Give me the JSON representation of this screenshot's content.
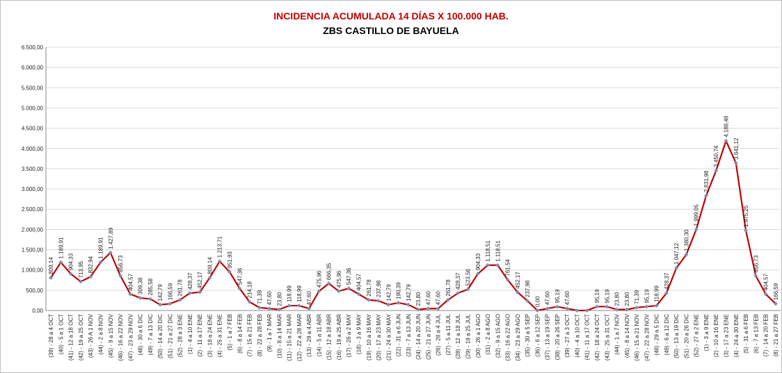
{
  "chart_data": {
    "type": "line",
    "title": "INCIDENCIA ACUMULADA 14 DÍAS X 100.000 HAB.",
    "subtitle": "ZBS CASTILLO DE BAYUELA",
    "categories": [
      "(39) - 28 a 4 OCT",
      "(40) - 5 a 1 OCT",
      "(41) - 12 a 18 OCT",
      "(42) - 19 a 25 OCT",
      "(43) - 26 A 1 NOV",
      "(44) - 2 a 8 NOV",
      "(45) - 9 a 15 NOV",
      "(46) - 16 a 22 NOV",
      "(47) - 23 a 29 NOV",
      "(48) - 30 a 6 DIC",
      "(49) - 7 a 13 DIC",
      "(50) - 14 a 20 DIC",
      "(51) - 21 a 27 DIC",
      "(52) - 28 a 3 ENE",
      "(1) - 4 a 10 ENE",
      "(2) - 11 a 17 ENE",
      "(3) - 18 a 24 ENE",
      "(4) - 25 a 31 ENE",
      "(5) - 1 a 7 FEB",
      "(6) - 8 a 14 FEB",
      "(7) - 15 a 21 FEB",
      "(8) - 22 a 28 FEB",
      "(9) - 1 a 7 MAR",
      "(10) - 8 a 14 MAR",
      "(11) - 15 a 21 MAR",
      "(12) - 22 a 28 MAR",
      "(13) - 29 a 4 ABR",
      "(14) - 5 a 11 ABR",
      "(15) - 12 a 18 ABR",
      "(16) - 19 a 25 ABR",
      "(17) - 26 a 2 MAY",
      "(18) - 3 a 9 MAY",
      "(19) - 10 a 16 MAY",
      "(20) - 17 a 23 MAY",
      "(21) - 24 a 30 MAY",
      "(22) - 31 a 6 JUN",
      "(23) - 7 a 13 JUN",
      "(24) - 14 a 20 JUN",
      "(25) - 21 a 27 JUN",
      "(26) - 28 a 4 JUL",
      "(27) - 5 a 11 JUL",
      "(28) - 12 a 18 JUL",
      "(29) - 19 a 25 JUL",
      "(30) - 26 a 1 AGO",
      "(31) - 2 a 8 AGO",
      "(32) - 9 a 15 AGO",
      "(33) - 16 a 22 AGO",
      "(34) - 23 a 29 AGO",
      "(35) - 30 a 5 SEP",
      "(36) - 6 a 12 SEP",
      "(37) - 13 a 19 SEP",
      "(38) - 20 a 26 SEP",
      "(39) - 27 a 3 OCT",
      "(40) - 4 a 10 OCT",
      "(41) - 11 a 17 OCT",
      "(42) - 18 a 24 OCT",
      "(43) - 25 a 31 OCT",
      "(44) - 1 a 7 NOV",
      "(45) - 8 a 14 NOV",
      "(46) - 15 a 21 NOV",
      "(47) - 22 a 28 NOV",
      "(48) - 29 a 5 DIC",
      "(49) - 6 a 12 DIC",
      "(50) - 13 a 19 DIC",
      "(51) - 20 a 26 DIC",
      "(52) - 27 a 2 ENE",
      "(1) - 3 a 9 ENE",
      "(2) - 10 a 16 ENE",
      "(3) - 17 a 23 ENE",
      "(4) - 24 a 30 ENE",
      "(5) - 31 a 6 FEB",
      "(6) - 7 a 13 FEB",
      "(7) - 14 a 20 FEB",
      "(8) - 21 a 27 FEB"
    ],
    "values": [
      809.14,
      1189.91,
      904.33,
      713.95,
      832.94,
      1189.91,
      1427.89,
      856.73,
      404.57,
      309.38,
      285.58,
      142.79,
      166.59,
      261.78,
      428.37,
      452.17,
      809.14,
      1213.71,
      951.93,
      547.36,
      214.18,
      71.39,
      47.6,
      23.8,
      118.99,
      118.99,
      47.6,
      475.96,
      666.35,
      475.96,
      547.36,
      404.57,
      261.78,
      237.98,
      142.79,
      190.39,
      142.79,
      23.8,
      47.6,
      47.6,
      261.78,
      428.37,
      523.56,
      904.33,
      1118.51,
      1118.51,
      761.54,
      452.17,
      237.98,
      0,
      47.6,
      95.19,
      47.6,
      0,
      0,
      95.19,
      95.19,
      23.8,
      23.8,
      71.39,
      95.19,
      118.99,
      428.37,
      1047.12,
      1380.3,
      1999.05,
      2831.98,
      3450.74,
      4188.48,
      3641.12,
      1975.25,
      856.73,
      404.57,
      166.59
    ],
    "value_labels": [
      "809,14",
      "1.189,91",
      "904,33",
      "713,95",
      "832,94",
      "1.189,91",
      "1.427,89",
      "856,73",
      "404,57",
      "309,38",
      "285,58",
      "142,79",
      "166,59",
      "261,78",
      "428,37",
      "452,17",
      "809,14",
      "1.213,71",
      "951,93",
      "547,36",
      "214,18",
      "71,39",
      "47,60",
      "23,80",
      "118,99",
      "118,99",
      "47,60",
      "475,96",
      "666,35",
      "475,96",
      "547,36",
      "404,57",
      "261,78",
      "237,98",
      "142,79",
      "190,39",
      "142,79",
      "23,80",
      "47,60",
      "47,60",
      "261,78",
      "428,37",
      "523,56",
      "904,33",
      "1.118,51",
      "1.118,51",
      "761,54",
      "452,17",
      "237,98",
      "0,00",
      "47,60",
      "95,19",
      "47,60",
      null,
      null,
      "95,19",
      "95,19",
      "23,80",
      "23,80",
      "71,39",
      "95,19",
      "118,99",
      "428,37",
      "1.047,12",
      "1.380,30",
      "1.999,05",
      "2.831,98",
      "3.450,74",
      "4.188,48",
      "3.641,12",
      "1.975,25",
      "856,73",
      "404,57",
      "166,59"
    ],
    "color": "#c00000",
    "marker_color": "#7f8fb0",
    "ylim": [
      0,
      6500
    ],
    "yticks": [
      {
        "value": 0,
        "label": "0,00"
      },
      {
        "value": 500,
        "label": "500,00"
      },
      {
        "value": 1000,
        "label": "1.000,00"
      },
      {
        "value": 1500,
        "label": "1.500,00"
      },
      {
        "value": 2000,
        "label": "2.000,00"
      },
      {
        "value": 2500,
        "label": "2.500,00"
      },
      {
        "value": 3000,
        "label": "3.000,00"
      },
      {
        "value": 3500,
        "label": "3.500,00"
      },
      {
        "value": 4000,
        "label": "4.000,00"
      },
      {
        "value": 4500,
        "label": "4.500,00"
      },
      {
        "value": 5000,
        "label": "5.000,00"
      },
      {
        "value": 5500,
        "label": "5.500,00"
      },
      {
        "value": 6000,
        "label": "6.000,00"
      },
      {
        "value": 6500,
        "label": "6.500,00"
      }
    ],
    "grid": true
  }
}
